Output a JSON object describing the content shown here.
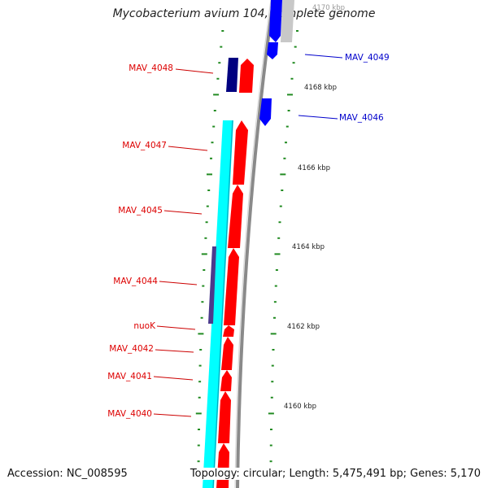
{
  "title": "Mycobacterium avium 104, complete genome",
  "accession": "Accession: NC_008595",
  "summary": "Topology: circular; Length: 5,475,491 bp; Genes: 5,170",
  "ruler_labels": [
    "4170 kbp",
    "4168 kbp",
    "4166 kbp",
    "4164 kbp",
    "4162 kbp",
    "4160 kbp"
  ],
  "gene_labels_left": [
    "MAV_4048",
    "MAV_4047",
    "MAV_4045",
    "MAV_4044",
    "nuoK",
    "MAV_4042",
    "MAV_4041",
    "MAV_4040"
  ],
  "gene_labels_right": [
    "MAV_4049",
    "MAV_4046"
  ],
  "colors": {
    "forward_gene": "#ff0000",
    "reverse_gene": "#0000ff",
    "operon": "#00ffff",
    "dark_block": "#000080",
    "purple_block": "#4b3a8c",
    "tick": "#228b22",
    "backbone": "#909090",
    "left_label": "#dd0000",
    "right_label": "#0000cc"
  }
}
